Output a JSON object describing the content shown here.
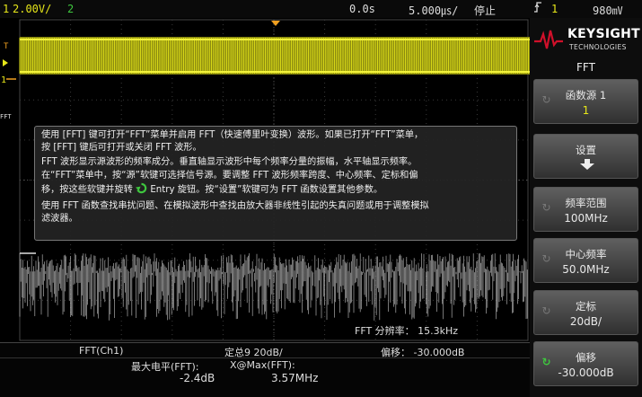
{
  "topbar": {
    "ch1_label": "1",
    "ch1_scale": "2.00V/",
    "ch2_label": "2",
    "time_delay": "0.0s",
    "time_scale": "5.000㎲/",
    "run_state": "停止",
    "trigger_icon": "trigger-rising-edge-icon",
    "trigger_source": "1",
    "trigger_level": "980㎷"
  },
  "markers": {
    "trigger_level_marker": "T",
    "ch1_marker": "1",
    "fft_marker": "FFT"
  },
  "help": {
    "p1_line1": "使用 [FFT] 键可打开“FFT”菜单并启用 FFT（快速傅里叶变换）波形。如果已打开“FFT”菜单，",
    "p1_line2": "按 [FFT] 键后可打开或关闭 FFT 波形。",
    "p2": "FFT 波形显示源波形的频率成分。垂直轴显示波形中每个频率分量的振幅，水平轴显示频率。",
    "p3_line1": "在“FFT”菜单中，按“源”软键可选择信号源。要调整 FFT 波形频率跨度、中心频率、定标和偏",
    "p3_line2_a": "移，按这些软键并旋转",
    "p3_line2_b": "Entry 旋钮。按“设置”软键可为 FFT 函数设置其他参数。",
    "p4_line1": "使用 FFT 函数查找串扰问题、在模拟波形中查找由放大器非线性引起的失真问题或用于调整模拟",
    "p4_line2": "滤波器。"
  },
  "fft_resolution": "FFT 分辨率： 15.3kHz",
  "bottom": {
    "source_label": "FFT(Ch1)",
    "scale_label": "定总9 20dB/",
    "offset_label": "偏移： -30.000dB",
    "max_label": "最大电平(FFT):",
    "max_value": "-2.4dB",
    "xmax_label": "X@Max(FFT):",
    "xmax_value": "3.57MHz"
  },
  "softkeys": {
    "brand_name": "KEYSIGHT",
    "brand_sub": "TECHNOLOGIES",
    "menu_title": "FFT",
    "source": {
      "label": "函数源 1",
      "value": "1"
    },
    "settings": {
      "label": "设置"
    },
    "span": {
      "label": "频率范围",
      "value": "100MHz"
    },
    "center": {
      "label": "中心频率",
      "value": "50.0MHz"
    },
    "scale": {
      "label": "定标",
      "value": "20dB/"
    },
    "offset": {
      "label": "偏移",
      "value": "-30.000dB"
    }
  },
  "colors": {
    "ch1": "#e6e619",
    "ch2": "#3ec63e",
    "fft": "#c8c8c8",
    "trigger": "#f0a020",
    "brand": "#d0102a"
  }
}
